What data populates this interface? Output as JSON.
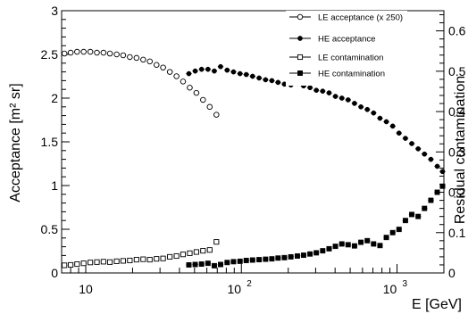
{
  "chart_data": {
    "type": "scatter",
    "xlabel": "E [GeV]",
    "ylabel_left": "Acceptance [m² sr]",
    "ylabel_right": "Residual contamination",
    "xscale": "log",
    "xlim": [
      7,
      2000
    ],
    "ylim_left": [
      0,
      3
    ],
    "ylim_right": [
      0,
      0.65
    ],
    "xticks_major": [
      10,
      100,
      1000
    ],
    "xtick_labels": [
      "10",
      "10^2",
      "10^3"
    ],
    "yticks_left": [
      0,
      0.5,
      1,
      1.5,
      2,
      2.5,
      3
    ],
    "ytick_labels_left": [
      "0",
      "0.5",
      "1",
      "1.5",
      "2",
      "2.5",
      "3"
    ],
    "yticks_right": [
      0,
      0.1,
      0.2,
      0.3,
      0.4,
      0.5,
      0.6
    ],
    "ytick_labels_right": [
      "0",
      "0.1",
      "0.2",
      "0.3",
      "0.4",
      "0.5",
      "0.6"
    ],
    "grid": false,
    "legend_position": "top-right",
    "series": [
      {
        "name": "LE acceptance (x 250)",
        "axis": "left",
        "marker": "open-circle",
        "x": [
          7.3,
          8.0,
          8.8,
          9.7,
          10.7,
          11.8,
          13.0,
          14.3,
          15.8,
          17.4,
          19.2,
          21.2,
          23.4,
          25.8,
          28.5,
          31.4,
          34.7,
          38.3,
          42.2,
          46.6,
          51.4,
          56.7,
          62.6,
          69.1
        ],
        "y": [
          2.51,
          2.52,
          2.53,
          2.53,
          2.53,
          2.52,
          2.52,
          2.51,
          2.5,
          2.49,
          2.47,
          2.46,
          2.44,
          2.42,
          2.38,
          2.35,
          2.3,
          2.25,
          2.19,
          2.12,
          2.06,
          1.98,
          1.9,
          1.81
        ]
      },
      {
        "name": "HE acceptance",
        "axis": "left",
        "marker": "filled-circle",
        "x": [
          46,
          50.5,
          55.5,
          61,
          67,
          73.5,
          81,
          89,
          98,
          107.5,
          118,
          130,
          143,
          157,
          172,
          189,
          208,
          229,
          251,
          276,
          303,
          333,
          366,
          402,
          442,
          485,
          533,
          586,
          644,
          707,
          777,
          854,
          938,
          1030,
          1132,
          1244,
          1367,
          1501,
          1650,
          1813,
          1960
        ],
        "y": [
          2.28,
          2.31,
          2.33,
          2.33,
          2.31,
          2.36,
          2.32,
          2.3,
          2.28,
          2.27,
          2.25,
          2.23,
          2.21,
          2.2,
          2.18,
          2.16,
          2.15,
          2.17,
          2.14,
          2.12,
          2.09,
          2.08,
          2.06,
          2.02,
          2.0,
          1.98,
          1.94,
          1.9,
          1.87,
          1.83,
          1.77,
          1.73,
          1.68,
          1.6,
          1.54,
          1.48,
          1.42,
          1.36,
          1.3,
          1.22,
          1.16
        ]
      },
      {
        "name": "LE contamination",
        "axis": "right",
        "marker": "open-square",
        "x": [
          7.3,
          8.0,
          8.8,
          9.7,
          10.7,
          11.8,
          13.0,
          14.3,
          15.8,
          17.4,
          19.2,
          21.2,
          23.4,
          25.8,
          28.5,
          31.4,
          34.7,
          38.3,
          42.2,
          46.6,
          51.4,
          56.7,
          62.6,
          69.1
        ],
        "y": [
          0.019,
          0.02,
          0.022,
          0.024,
          0.026,
          0.027,
          0.028,
          0.027,
          0.029,
          0.03,
          0.031,
          0.033,
          0.034,
          0.033,
          0.035,
          0.036,
          0.04,
          0.042,
          0.046,
          0.049,
          0.052,
          0.055,
          0.057,
          0.077
        ]
      },
      {
        "name": "HE contamination",
        "axis": "right",
        "marker": "filled-square",
        "x": [
          46,
          50.5,
          55.5,
          61,
          67,
          73.5,
          81,
          89,
          98,
          107.5,
          118,
          130,
          143,
          157,
          172,
          189,
          208,
          229,
          251,
          276,
          303,
          333,
          366,
          402,
          442,
          485,
          533,
          586,
          644,
          707,
          777,
          854,
          938,
          1030,
          1132,
          1244,
          1367,
          1501,
          1650,
          1813,
          1960
        ],
        "y": [
          0.02,
          0.021,
          0.022,
          0.024,
          0.018,
          0.021,
          0.026,
          0.028,
          0.029,
          0.031,
          0.032,
          0.033,
          0.034,
          0.035,
          0.037,
          0.038,
          0.04,
          0.042,
          0.044,
          0.047,
          0.05,
          0.055,
          0.06,
          0.066,
          0.072,
          0.07,
          0.067,
          0.076,
          0.08,
          0.072,
          0.068,
          0.088,
          0.1,
          0.108,
          0.13,
          0.145,
          0.14,
          0.16,
          0.18,
          0.2,
          0.215
        ]
      }
    ]
  }
}
